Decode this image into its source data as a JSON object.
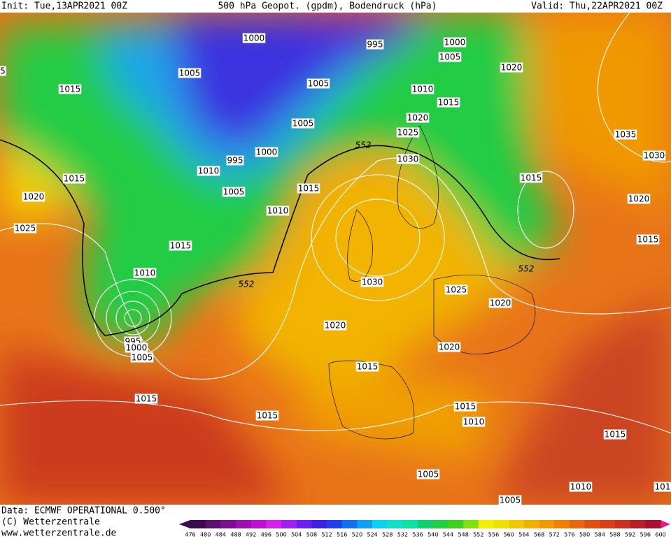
{
  "header": {
    "init": "Init: Tue,13APR2021 00Z",
    "title": "500 hPa Geopot. (gpdm), Bodendruck (hPa)",
    "valid": "Valid: Thu,22APR2021 00Z"
  },
  "map": {
    "isobar_labels": [
      1000,
      995,
      1000,
      1005,
      1020,
      5,
      1015,
      1005,
      1005,
      1010,
      1015,
      1020,
      1025,
      1035,
      1005,
      1000,
      995,
      1030,
      1030,
      1010,
      1015,
      1015,
      1015,
      1005,
      1020,
      1020,
      1010,
      1025,
      1015,
      1015,
      1010,
      1030,
      1025,
      1020,
      1020,
      995,
      1000,
      1005,
      1020,
      1015,
      1015,
      1015,
      1015,
      1010,
      1015,
      1005,
      1010,
      101,
      1005
    ],
    "geopotential_labels": [
      552,
      552,
      552
    ]
  },
  "footer": {
    "data": "Data: ECMWF OPERATIONAL 0.500°",
    "copyright": "(C) Wetterzentrale",
    "url": "www.wetterzentrale.de"
  },
  "colorbar": {
    "levels": [
      476,
      480,
      484,
      488,
      492,
      496,
      500,
      504,
      508,
      512,
      516,
      520,
      524,
      528,
      532,
      536,
      540,
      544,
      548,
      552,
      556,
      560,
      564,
      568,
      572,
      576,
      580,
      584,
      588,
      592,
      596,
      600
    ],
    "colors": [
      "#3d0a4e",
      "#5c0f6e",
      "#7a1090",
      "#9a10b0",
      "#c010d0",
      "#d820e8",
      "#a020f0",
      "#6a20f0",
      "#4020e0",
      "#2040f0",
      "#1070f0",
      "#10a0f0",
      "#10d0f0",
      "#10e0c8",
      "#10e0a0",
      "#10d070",
      "#20d040",
      "#40d020",
      "#80e010",
      "#f0f000",
      "#f0e000",
      "#f0c800",
      "#f0b000",
      "#f09800",
      "#f08000",
      "#e86810",
      "#e05010",
      "#d84018",
      "#c83020",
      "#b82028",
      "#a81030",
      "#e02080"
    ]
  }
}
